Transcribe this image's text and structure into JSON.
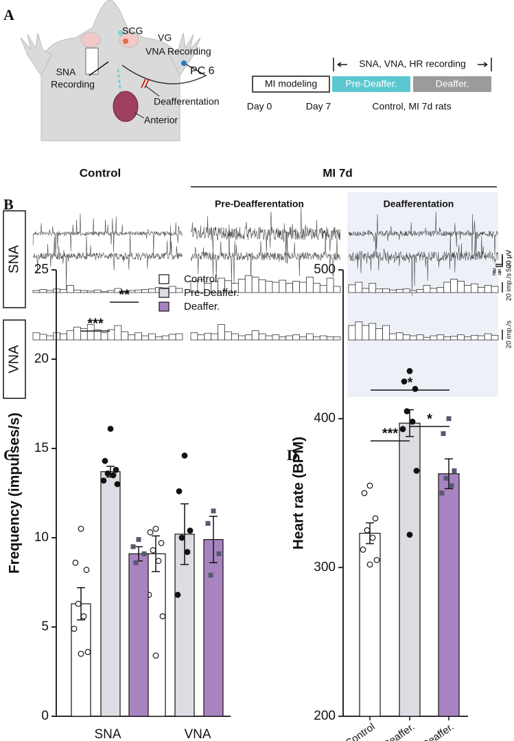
{
  "panel_a": {
    "letter": "A",
    "labels": [
      "SCG",
      "VG",
      "VNA Recording",
      "SNA",
      "Recording",
      "PC 6",
      "Deafferentation",
      "Anterior"
    ],
    "timeline": {
      "heading": "SNA, VNA, HR recording",
      "boxes": [
        "MI modeling",
        "Pre-Deaffer.",
        "Deaffer."
      ],
      "days": [
        "Day 0",
        "Day 7"
      ],
      "note": "Control, MI 7d rats"
    }
  },
  "panel_b": {
    "letter": "B",
    "group_titles": [
      "Control",
      "MI 7d"
    ],
    "conditions": [
      "Pre-Deafferentation",
      "Deafferentation"
    ],
    "rows": [
      {
        "name": "SNA",
        "trace_scale": "20 μV",
        "time_scale": "2 s",
        "rate_scale": "20 imp./s",
        "histograms": [
          [
            4,
            6,
            4,
            7,
            6,
            14,
            5,
            4,
            3,
            5,
            2,
            4,
            8,
            3,
            4,
            5,
            6,
            7,
            10,
            9,
            12,
            8
          ],
          [
            22,
            25,
            18,
            22,
            28,
            23,
            18,
            26,
            33,
            30,
            25,
            22,
            20,
            24,
            18,
            22,
            20,
            30,
            18,
            14,
            28,
            12
          ],
          [
            15,
            20,
            8,
            18,
            7,
            7,
            5,
            6,
            7,
            4,
            6,
            14,
            8,
            10,
            20,
            26,
            22,
            14,
            17,
            10,
            14,
            12
          ]
        ]
      },
      {
        "name": "VNA",
        "trace_scale": "500 μV",
        "time_scale": "2 s",
        "rate_scale": "20 imp./s",
        "histograms": [
          [
            14,
            11,
            8,
            14,
            12,
            18,
            25,
            22,
            30,
            20,
            14,
            20,
            28,
            16,
            10,
            14,
            8,
            12,
            6,
            8,
            11,
            12
          ],
          [
            14,
            10,
            13,
            12,
            30,
            16,
            12,
            8,
            10,
            18,
            12,
            8,
            10,
            6,
            8,
            10,
            6,
            12,
            6,
            8,
            6,
            6
          ],
          [
            28,
            35,
            28,
            32,
            22,
            28,
            12,
            14,
            10,
            8,
            10,
            5,
            8,
            10,
            6,
            7,
            10,
            6,
            9,
            8,
            12,
            9
          ]
        ]
      }
    ]
  },
  "chart_data": [
    {
      "type": "bar",
      "letter": "C",
      "ylabel": "Frequency (impulses/s)",
      "categories": [
        "SNA",
        "VNA"
      ],
      "series": [
        {
          "name": "Control",
          "color": "#ffffff",
          "marker": "open-circle",
          "values": [
            6.3,
            9.1
          ],
          "errors": [
            0.9,
            1.0
          ],
          "points": [
            [
              10.5,
              8.6,
              8.2,
              6.3,
              5.6,
              4.9,
              3.6,
              3.5
            ],
            [
              10.5,
              10.3,
              9.7,
              9.3,
              8.7,
              6.8,
              5.6,
              3.4
            ]
          ]
        },
        {
          "name": "Pre-Deaffer.",
          "color": "#dcdce2",
          "marker": "circle",
          "values": [
            13.7,
            10.2
          ],
          "errors": [
            0.3,
            1.7
          ],
          "points": [
            [
              16.1,
              14.3,
              13.8,
              13.6,
              13.5,
              13.2,
              13.0
            ],
            [
              14.6,
              12.6,
              10.4,
              10.0,
              9.2,
              6.8
            ]
          ]
        },
        {
          "name": "Deaffer.",
          "color": "#a883c0",
          "marker": "square",
          "values": [
            9.1,
            9.9
          ],
          "errors": [
            0.4,
            1.3
          ],
          "points": [
            [
              9.9,
              9.5,
              9.1,
              8.6
            ],
            [
              11.5,
              10.8,
              9.1,
              7.9
            ]
          ]
        }
      ],
      "ylim": [
        0,
        25
      ],
      "yticks": [
        0,
        5,
        10,
        15,
        20,
        25
      ],
      "annotations": [
        "***",
        "**"
      ]
    },
    {
      "type": "bar",
      "letter": "D",
      "ylabel": "Heart rate (BPM)",
      "categories": [
        "Control",
        "Pre-Deaffer.",
        "Deaffer."
      ],
      "colors": [
        "#ffffff",
        "#dcdce2",
        "#a883c0"
      ],
      "markers": [
        "open-circle",
        "circle",
        "square"
      ],
      "values": [
        323,
        397,
        363
      ],
      "errors": [
        7,
        9,
        10
      ],
      "points": [
        [
          355,
          350,
          333,
          325,
          320,
          312,
          305,
          302
        ],
        [
          432,
          425,
          420,
          405,
          398,
          393,
          365,
          322
        ],
        [
          400,
          390,
          365,
          360,
          355,
          350
        ]
      ],
      "ylim": [
        200,
        500
      ],
      "yticks": [
        200,
        300,
        400,
        500
      ],
      "annotations": [
        "***",
        "*",
        "*"
      ]
    }
  ]
}
